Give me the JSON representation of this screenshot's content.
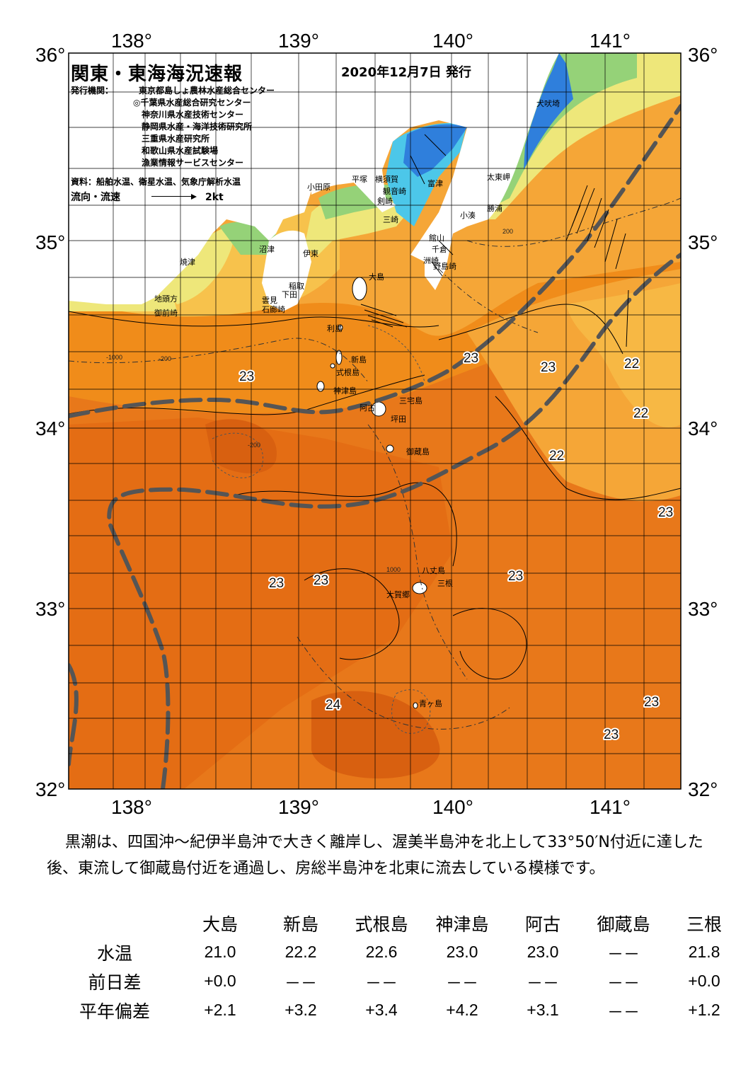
{
  "header": {
    "title": "関東・東海海況速報",
    "issue_date": "2020年12月7日 発行",
    "issuer_label": "発行機関：",
    "issuers": [
      "東京都島しょ農林水産総合センター",
      "◎千葉県水産総合研究センター",
      "神奈川県水産技術センター",
      "静岡県水産・海洋技術研究所",
      "三重県水産研究所",
      "和歌山県水産試験場",
      "漁業情報サービスセンター"
    ],
    "source": "資料：船舶水温、衛星水温、気象庁解析水温",
    "legend_label": "流向・流速",
    "legend_unit": "2kt"
  },
  "axes": {
    "lon_labels": [
      "138°",
      "139°",
      "140°",
      "141°"
    ],
    "lat_labels": [
      "36°",
      "35°",
      "34°",
      "33°",
      "32°"
    ]
  },
  "colors": {
    "ocean_warm": "#f08c1a",
    "ocean_mid": "#e86f12",
    "ocean_hot": "#dc6410",
    "ocean_cool": "#f5a637",
    "ocean_cooler": "#f7c24c",
    "coastal_yellow": "#eee77a",
    "coastal_green": "#95d278",
    "bay_cyan": "#4cc7e9",
    "bay_blue": "#2f7fdc",
    "land": "#ffffff",
    "kuroshio_axis": "#555555"
  },
  "places": [
    "犬吠埼",
    "太東岬",
    "勝浦",
    "小湊",
    "富津",
    "館山",
    "千倉",
    "野島崎",
    "洲崎",
    "横須賀",
    "観音崎",
    "剣崎",
    "三崎",
    "平塚",
    "小田原",
    "伊東",
    "沼津",
    "焼津",
    "稲取",
    "下田",
    "雲見",
    "石廊崎",
    "地頭方",
    "御前崎",
    "大島",
    "利島",
    "新島",
    "式根島",
    "神津島",
    "三宅島",
    "阿古",
    "坪田",
    "御蔵島",
    "八丈島",
    "三根",
    "大賀郷",
    "青ヶ島"
  ],
  "isotherm_labels": [
    "23",
    "23",
    "22",
    "22",
    "22",
    "23",
    "23",
    "23",
    "23",
    "23",
    "24",
    "23",
    "23"
  ],
  "depth_labels": [
    "-1000",
    "-200",
    "1000",
    "-200",
    "200"
  ],
  "comment": "黒潮は、四国沖～紀伊半島沖で大きく離岸し、渥美半島沖を北上して33°50′N付近に達した後、東流して御蔵島付近を通過し、房総半島沖を北東に流去している模様です。",
  "temperature_table": {
    "stations": [
      "大島",
      "新島",
      "式根島",
      "神津島",
      "阿古",
      "御蔵島",
      "三根"
    ],
    "rows": [
      {
        "label": "水温",
        "values": [
          "21.0",
          "22.2",
          "22.6",
          "23.0",
          "23.0",
          "－－",
          "21.8"
        ]
      },
      {
        "label": "前日差",
        "values": [
          "+0.0",
          "－－",
          "－－",
          "－－",
          "－－",
          "－－",
          "+0.0"
        ]
      },
      {
        "label": "平年偏差",
        "values": [
          "+2.1",
          "+3.2",
          "+3.4",
          "+4.2",
          "+3.1",
          "－－",
          "+1.2"
        ]
      }
    ]
  }
}
